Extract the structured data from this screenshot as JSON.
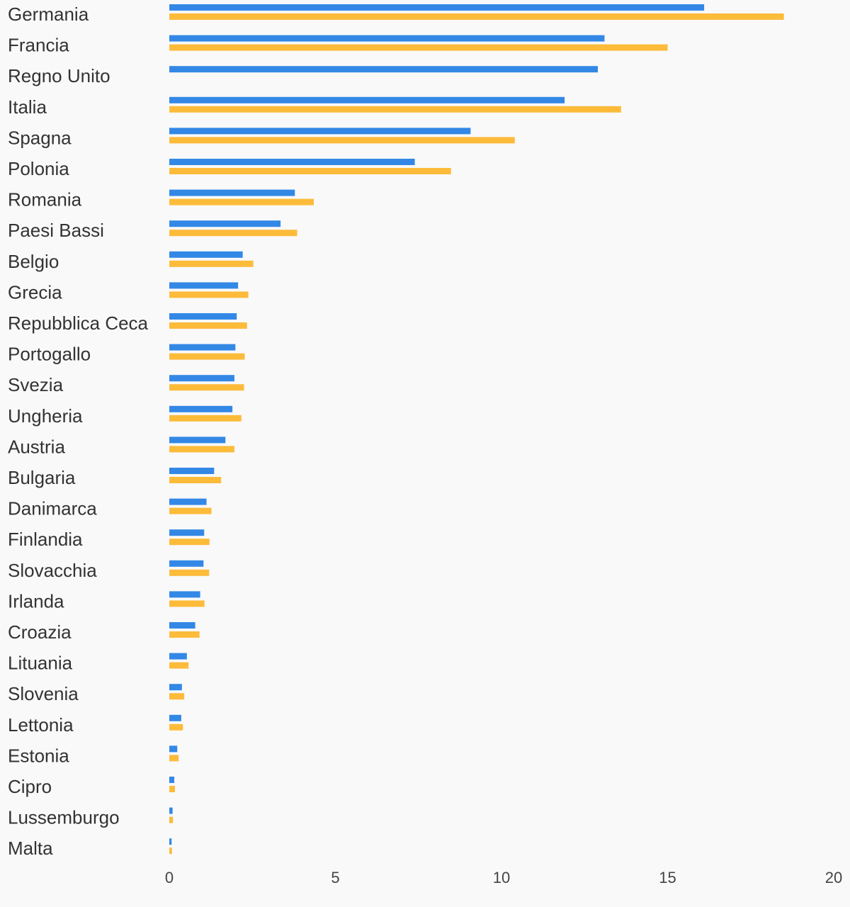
{
  "colors": {
    "background": "#f9f9f9",
    "series_1": "#3388e6",
    "series_2": "#fdbb3a",
    "text": "#333333"
  },
  "chart_data": {
    "type": "bar",
    "orientation": "horizontal",
    "title": "",
    "xlabel": "",
    "ylabel": "",
    "xlim": [
      0,
      20
    ],
    "x_ticks": [
      "0",
      "5",
      "10",
      "15",
      "20"
    ],
    "grid": false,
    "legend": "none",
    "categories": [
      "Germania",
      "Francia",
      "Regno Unito",
      "Italia",
      "Spagna",
      "Polonia",
      "Romania",
      "Paesi Bassi",
      "Belgio",
      "Grecia",
      "Repubblica Ceca",
      "Portogallo",
      "Svezia",
      "Ungheria",
      "Austria",
      "Bulgaria",
      "Danimarca",
      "Finlandia",
      "Slovacchia",
      "Irlanda",
      "Croazia",
      "Lituania",
      "Slovenia",
      "Lettonia",
      "Estonia",
      "Cipro",
      "Lussemburgo",
      "Malta"
    ],
    "series": [
      {
        "color": "#3388e6",
        "values": [
          16.1,
          13.1,
          12.9,
          11.9,
          9.07,
          7.39,
          3.78,
          3.35,
          2.21,
          2.07,
          2.03,
          1.99,
          1.96,
          1.9,
          1.69,
          1.35,
          1.12,
          1.05,
          1.03,
          0.93,
          0.78,
          0.53,
          0.38,
          0.36,
          0.24,
          0.15,
          0.1,
          0.07
        ]
      },
      {
        "color": "#fdbb3a",
        "values": [
          18.5,
          15.0,
          null,
          13.6,
          10.4,
          8.48,
          4.35,
          3.85,
          2.53,
          2.38,
          2.34,
          2.27,
          2.25,
          2.17,
          1.96,
          1.56,
          1.27,
          1.21,
          1.2,
          1.06,
          0.91,
          0.58,
          0.45,
          0.41,
          0.28,
          0.17,
          0.11,
          0.08
        ]
      }
    ]
  }
}
